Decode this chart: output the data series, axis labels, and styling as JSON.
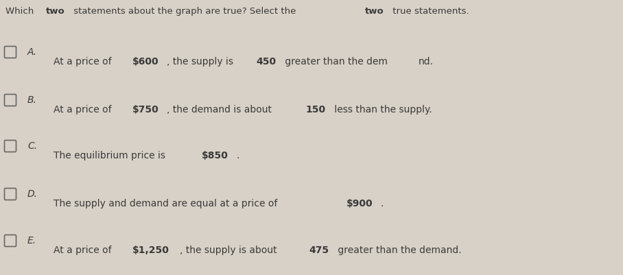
{
  "background_color": "#d8d1c7",
  "text_color": "#3a3a3a",
  "checkbox_color": "#666666",
  "font_size_title": 9.5,
  "font_size_option": 10.0,
  "title_parts": [
    {
      "text": "Which ",
      "bold": false
    },
    {
      "text": "two",
      "bold": true
    },
    {
      "text": " statements about the graph are true? Select the ",
      "bold": false
    },
    {
      "text": "two",
      "bold": true
    },
    {
      "text": " true statements.",
      "bold": false
    }
  ],
  "options": [
    {
      "label": "A.",
      "segments": [
        {
          "text": "At a price of ",
          "bold": false
        },
        {
          "text": "$600",
          "bold": true
        },
        {
          "text": ", the supply is ",
          "bold": false
        },
        {
          "text": "450",
          "bold": true
        },
        {
          "text": " greater than the dem",
          "bold": false
        },
        {
          "text": "nd.",
          "bold": false
        }
      ]
    },
    {
      "label": "B.",
      "segments": [
        {
          "text": "At a price of ",
          "bold": false
        },
        {
          "text": "$750",
          "bold": true
        },
        {
          "text": ", the demand is about ",
          "bold": false
        },
        {
          "text": "150",
          "bold": true
        },
        {
          "text": " less than the supply.",
          "bold": false
        }
      ]
    },
    {
      "label": "C.",
      "segments": [
        {
          "text": "The equilibrium price is ",
          "bold": false
        },
        {
          "text": "$850",
          "bold": true
        },
        {
          "text": ".",
          "bold": false
        }
      ]
    },
    {
      "label": "D.",
      "segments": [
        {
          "text": "The supply and demand are equal at a price of ",
          "bold": false
        },
        {
          "text": "$900",
          "bold": true
        },
        {
          "text": ".",
          "bold": false
        }
      ]
    },
    {
      "label": "E.",
      "segments": [
        {
          "text": "At a price of ",
          "bold": false
        },
        {
          "text": "$1,250",
          "bold": true
        },
        {
          "text": ", the supply is about ",
          "bold": false
        },
        {
          "text": "475",
          "bold": true
        },
        {
          "text": " greater than the demand.",
          "bold": false
        }
      ]
    }
  ]
}
